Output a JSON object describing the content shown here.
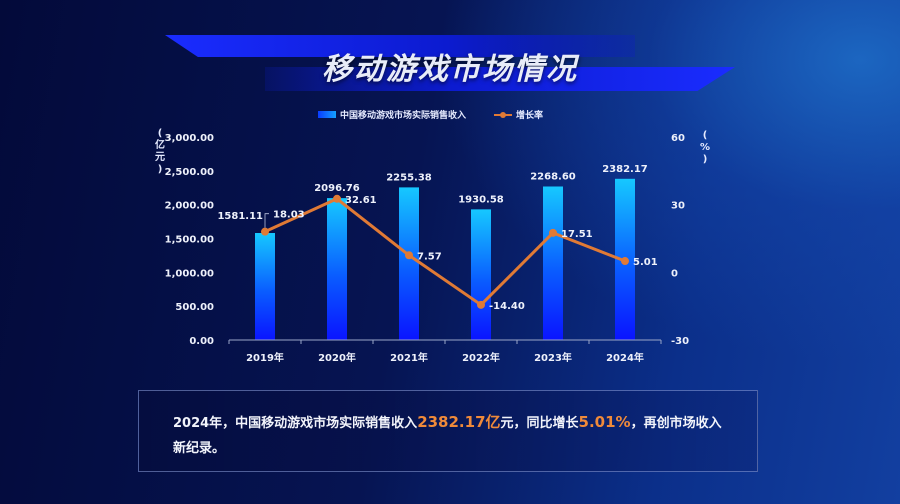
{
  "header": {
    "title": "移动游戏市场情况"
  },
  "legend": {
    "bar_label": "中国移动游戏市场实际销售收入",
    "line_label": "增长率"
  },
  "axes": {
    "left_unit": [
      "(",
      "亿",
      "元",
      ")"
    ],
    "right_unit": [
      "(",
      "%",
      ")"
    ],
    "left_ticks": [
      "3,000.00",
      "2,500.00",
      "2,000.00",
      "1,500.00",
      "1,000.00",
      "500.00",
      "0.00"
    ],
    "right_ticks": [
      "60",
      "30",
      "0",
      "-30"
    ]
  },
  "colors": {
    "bar_top": "#16c8ff",
    "bar_bottom": "#0a14ff",
    "line": "#e07a35",
    "highlight": "#ef8a3a"
  },
  "summary": {
    "part1": "2024年，中国移动游戏市场实际销售收入",
    "hl1": "2382.17亿",
    "part2": "元，同比增长",
    "hl2": "5.01%",
    "part3": "，再创市场收入新纪录。"
  },
  "chart_data": {
    "type": "bar",
    "title": "移动游戏市场情况",
    "categories": [
      "2019年",
      "2020年",
      "2021年",
      "2022年",
      "2023年",
      "2024年"
    ],
    "series": [
      {
        "name": "中国移动游戏市场实际销售收入",
        "type": "bar",
        "axis": "left",
        "values": [
          1581.11,
          2096.76,
          2255.38,
          1930.58,
          2268.6,
          2382.17
        ]
      },
      {
        "name": "增长率",
        "type": "line",
        "axis": "right",
        "values": [
          18.03,
          32.61,
          7.57,
          -14.4,
          17.51,
          5.01
        ]
      }
    ],
    "ylabel": "亿元",
    "ylabel_right": "%",
    "ylim": [
      0,
      3000
    ],
    "ylim_right": [
      -30,
      60
    ],
    "legend_position": "top",
    "grid": false
  }
}
